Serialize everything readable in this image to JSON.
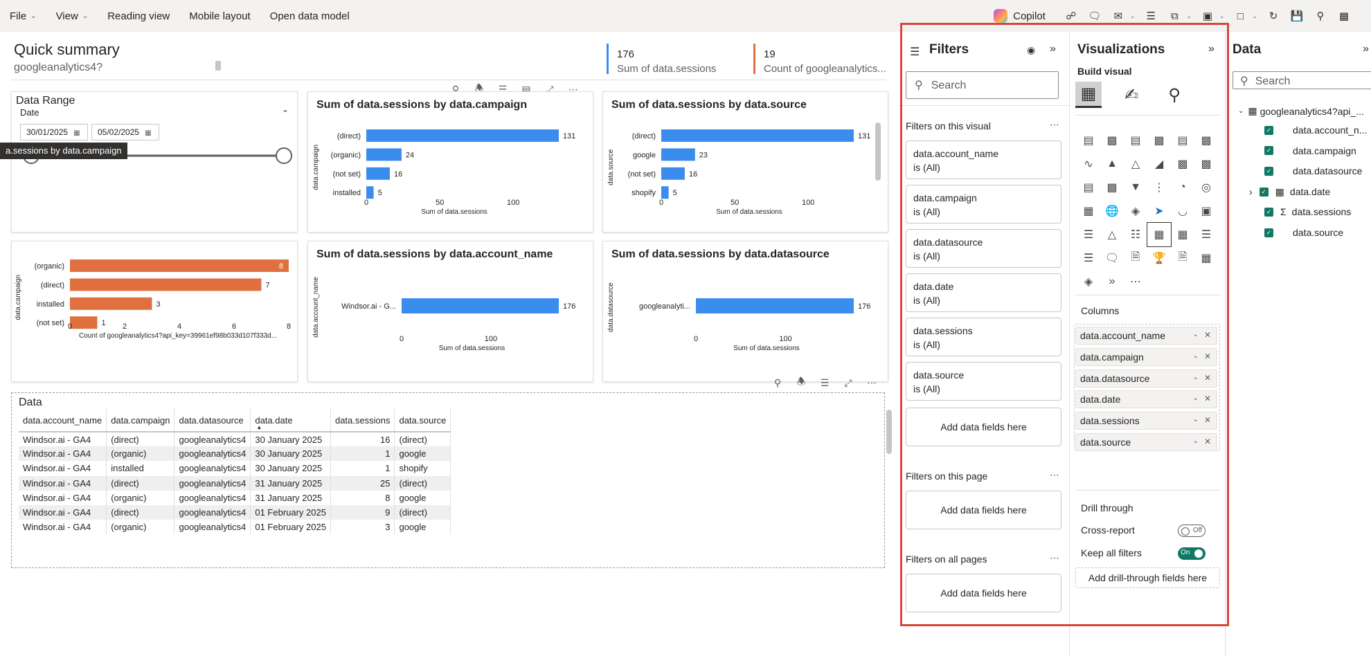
{
  "menu": {
    "items": [
      {
        "label": "File",
        "has_chevron": true
      },
      {
        "label": "View",
        "has_chevron": true
      },
      {
        "label": "Reading view",
        "has_chevron": false
      },
      {
        "label": "Mobile layout",
        "has_chevron": false
      },
      {
        "label": "Open data model",
        "has_chevron": false
      }
    ],
    "copilot_label": "Copilot"
  },
  "report": {
    "title": "Quick summary",
    "subtitle": "googleanalytics4?",
    "kpis": [
      {
        "value": "176",
        "label": "Sum of data.sessions",
        "color": "#3b8ded"
      },
      {
        "value": "19",
        "label": "Count of googleanalytics...",
        "color": "#e07040"
      }
    ]
  },
  "slicer": {
    "title": "Data Range",
    "field": "Date",
    "start": "30/01/2025",
    "end": "05/02/2025",
    "tooltip": "a.sessions by data.campaign"
  },
  "charts": [
    {
      "title": "Sum of data.sessions by data.campaign",
      "ylabel": "data.campaign",
      "xlabel": "Sum of data.sessions",
      "categories": [
        "(direct)",
        "(organic)",
        "(not set)",
        "installed"
      ],
      "values": [
        131,
        24,
        16,
        5
      ],
      "ticks": [
        "0",
        "50",
        "100"
      ],
      "tick_values": [
        0,
        50,
        100
      ],
      "xmax": 131,
      "color": "#3b8ded"
    },
    {
      "title": "Sum of data.sessions by data.source",
      "ylabel": "data.source",
      "xlabel": "Sum of data.sessions",
      "categories": [
        "(direct)",
        "google",
        "(not set)",
        "shopify"
      ],
      "values": [
        131,
        23,
        16,
        5
      ],
      "ticks": [
        "0",
        "50",
        "100"
      ],
      "tick_values": [
        0,
        50,
        100
      ],
      "xmax": 131,
      "color": "#3b8ded"
    },
    {
      "title": "",
      "ylabel": "data.campaign",
      "xlabel": "Count of googleanalytics4?api_key=39961ef98b033d107f333d...",
      "categories": [
        "(organic)",
        "(direct)",
        "installed",
        "(not set)"
      ],
      "values": [
        8,
        7,
        3,
        1
      ],
      "ticks": [
        "0",
        "2",
        "4",
        "6",
        "8"
      ],
      "tick_values": [
        0,
        2,
        4,
        6,
        8
      ],
      "xmax": 8,
      "color": "#e07040"
    },
    {
      "title": "Sum of data.sessions by data.account_name",
      "ylabel": "data.account_name",
      "xlabel": "Sum of data.sessions",
      "categories": [
        "Windsor.ai - G..."
      ],
      "values": [
        176
      ],
      "ticks": [
        "0",
        "100"
      ],
      "tick_values": [
        0,
        100
      ],
      "xmax": 176,
      "color": "#3b8ded"
    },
    {
      "title": "Sum of data.sessions by data.datasource",
      "ylabel": "data.datasource",
      "xlabel": "Sum of data.sessions",
      "categories": [
        "googleanalyti..."
      ],
      "values": [
        176
      ],
      "ticks": [
        "0",
        "100"
      ],
      "tick_values": [
        0,
        100
      ],
      "xmax": 176,
      "color": "#3b8ded"
    }
  ],
  "table": {
    "title": "Data",
    "columns": [
      "data.account_name",
      "data.campaign",
      "data.datasource",
      "data.date",
      "data.sessions",
      "data.source"
    ],
    "rows": [
      [
        "Windsor.ai - GA4",
        "(direct)",
        "googleanalytics4",
        "30 January 2025",
        "16",
        "(direct)"
      ],
      [
        "Windsor.ai - GA4",
        "(organic)",
        "googleanalytics4",
        "30 January 2025",
        "1",
        "google"
      ],
      [
        "Windsor.ai - GA4",
        "installed",
        "googleanalytics4",
        "30 January 2025",
        "1",
        "shopify"
      ],
      [
        "Windsor.ai - GA4",
        "(direct)",
        "googleanalytics4",
        "31 January 2025",
        "25",
        "(direct)"
      ],
      [
        "Windsor.ai - GA4",
        "(organic)",
        "googleanalytics4",
        "31 January 2025",
        "8",
        "google"
      ],
      [
        "Windsor.ai - GA4",
        "(direct)",
        "googleanalytics4",
        "01 February 2025",
        "9",
        "(direct)"
      ],
      [
        "Windsor.ai - GA4",
        "(organic)",
        "googleanalytics4",
        "01 February 2025",
        "3",
        "google"
      ]
    ]
  },
  "filters": {
    "title": "Filters",
    "search_placeholder": "Search",
    "visual_section": "Filters on this visual",
    "visual_filters": [
      {
        "field": "data.account_name",
        "state": "is (All)"
      },
      {
        "field": "data.campaign",
        "state": "is (All)"
      },
      {
        "field": "data.datasource",
        "state": "is (All)"
      },
      {
        "field": "data.date",
        "state": "is (All)"
      },
      {
        "field": "data.sessions",
        "state": "is (All)"
      },
      {
        "field": "data.source",
        "state": "is (All)"
      }
    ],
    "add_label": "Add data fields here",
    "page_section": "Filters on this page",
    "all_section": "Filters on all pages"
  },
  "visualizations": {
    "title": "Visualizations",
    "build_label": "Build visual",
    "columns_label": "Columns",
    "columns": [
      "data.account_name",
      "data.campaign",
      "data.datasource",
      "data.date",
      "data.sessions",
      "data.source"
    ],
    "drill_title": "Drill through",
    "cross_report": "Cross-report",
    "cross_report_state": "Off",
    "keep_filters": "Keep all filters",
    "keep_filters_state": "On",
    "drill_add": "Add drill-through fields here"
  },
  "data_pane": {
    "title": "Data",
    "search_placeholder": "Search",
    "table_name": "googleanalytics4?api_...",
    "fields": [
      "data.account_n...",
      "data.campaign",
      "data.datasource",
      "data.date",
      "data.sessions",
      "data.source"
    ]
  }
}
